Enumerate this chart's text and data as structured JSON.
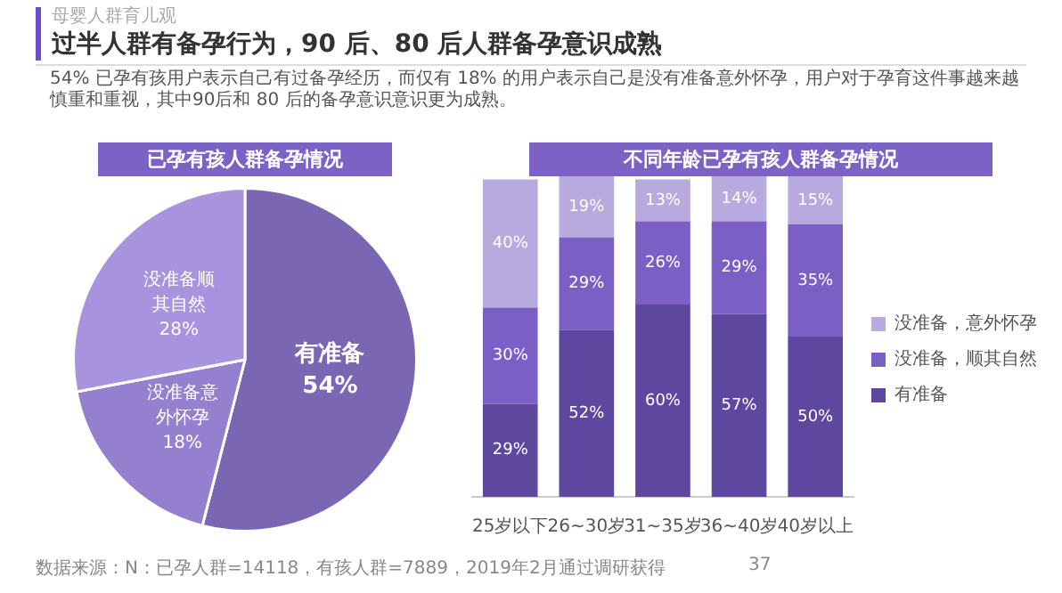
{
  "chart_data": [
    {
      "type": "pie",
      "title": "已孕有孩人群备孕情况",
      "categories": [
        "有准备",
        "没准备意外怀孕",
        "没准备顺其自然"
      ],
      "values": [
        54,
        18,
        28
      ],
      "colors": [
        "#7a66b3",
        "#9580cf",
        "#a893de"
      ],
      "value_labels": [
        "54%",
        "18%",
        "28%"
      ],
      "legend": false,
      "annotations": [
        "母婴人群育儿观",
        "过半人群有备孕行为，90 后、80 后人群备孕意识成熟",
        "54% 已孕有孩用户表示自己有过备孕经历，而仅有 18% 的用户表示自己是没有准备意外怀孕，用户对于孕育这件事越来越慎重和重视，其中90后和 80 后的备孕意识意识更为成熟。"
      ]
    },
    {
      "type": "bar",
      "stacked": true,
      "title": "不同年龄已孕有孩人群备孕情况",
      "categories": [
        "25岁以下",
        "26~30岁",
        "31~35岁",
        "36~40岁",
        "40岁以上"
      ],
      "series": [
        {
          "name": "有准备",
          "color": "#5e479e",
          "values": [
            29,
            52,
            60,
            57,
            50
          ],
          "value_labels": [
            "29%",
            "52%",
            "60%",
            "57%",
            "50%"
          ]
        },
        {
          "name": "没准备，顺其自然",
          "color": "#7b5fc4",
          "values": [
            30,
            29,
            26,
            29,
            35
          ],
          "value_labels": [
            "30%",
            "29%",
            "26%",
            "29%",
            "35%"
          ]
        },
        {
          "name": "没准备，意外怀孕",
          "color": "#b8a9de",
          "values": [
            40,
            19,
            13,
            14,
            15
          ],
          "value_labels": [
            "40%",
            "19%",
            "13%",
            "14%",
            "15%"
          ]
        }
      ],
      "legend": "right",
      "tick_labels": "x",
      "grid": false,
      "annotations": [
        "数据来源：N：已孕人群=14118，有孩人群=7889，2019年2月通过调研获得",
        "37"
      ]
    }
  ]
}
